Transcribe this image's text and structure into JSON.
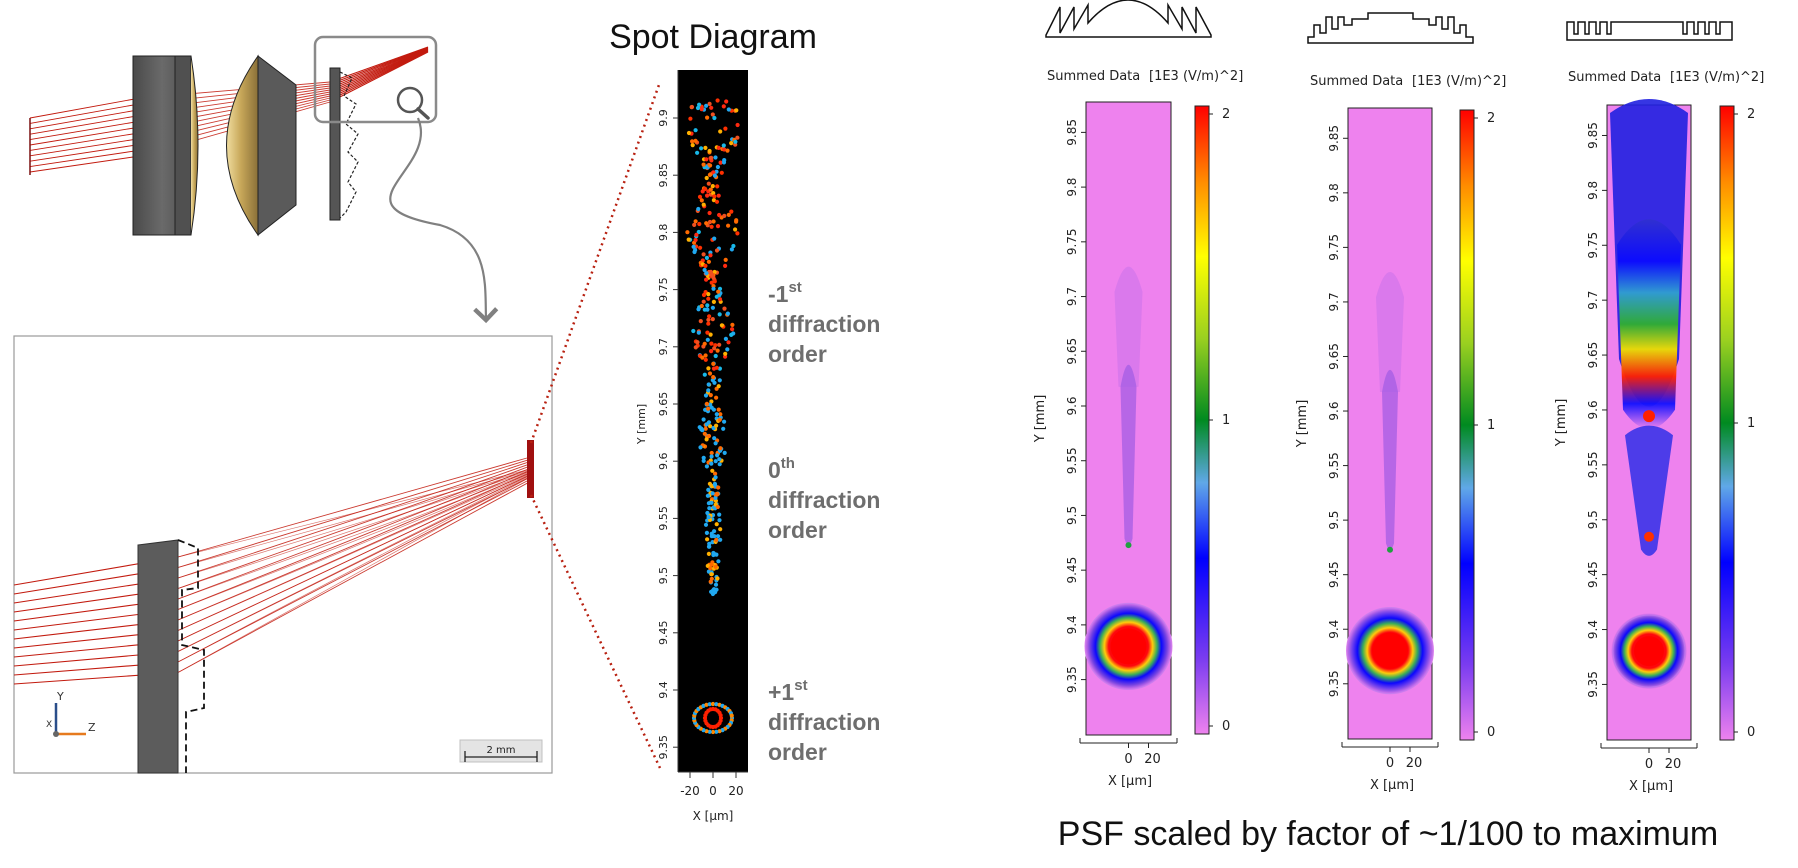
{
  "spot": {
    "title": "Spot Diagram",
    "x_unit_label": "X [µm]",
    "y_unit_label": "Y [mm]",
    "x_ticks": [
      "-20",
      "0",
      "20"
    ],
    "y_ticks": [
      "9.9",
      "9.85",
      "9.8",
      "9.75",
      "9.7",
      "9.65",
      "9.6",
      "9.55",
      "9.5",
      "9.45",
      "9.4",
      "9.35"
    ]
  },
  "orders": [
    {
      "prefix": "-1",
      "sup": "st",
      "line2": "diffraction",
      "line3": "order"
    },
    {
      "prefix": "0",
      "sup": "th",
      "line2": "diffraction",
      "line3": "order"
    },
    {
      "prefix": "+1",
      "sup": "st",
      "line2": "diffraction",
      "line3": "order"
    }
  ],
  "psf": {
    "panel_title": "Summed Data",
    "panel_unit": "[1E3 (V/m)^2]",
    "x_label": "X [µm]",
    "y_label": "Y [mm]",
    "x_ticks": [
      "0",
      "20"
    ],
    "y_ticks": [
      "9.85",
      "9.8",
      "9.75",
      "9.7",
      "9.65",
      "9.6",
      "9.55",
      "9.5",
      "9.45",
      "9.4",
      "9.35"
    ],
    "cb_ticks": [
      "2",
      "1",
      "0"
    ],
    "caption": "PSF scaled by factor of ~1/100 to maximum"
  },
  "scale_bar": "2 mm",
  "axis_triad": {
    "y": "Y",
    "x": "X",
    "z": "Z"
  },
  "colors": {
    "ray": "#c21a0e",
    "lens_dark": "#5f5f5f",
    "lens_gold": "#c8a85a",
    "spot_bg": "#000000",
    "psf_bg": "#ee82ee",
    "label_gray": "#6e6e6e"
  }
}
